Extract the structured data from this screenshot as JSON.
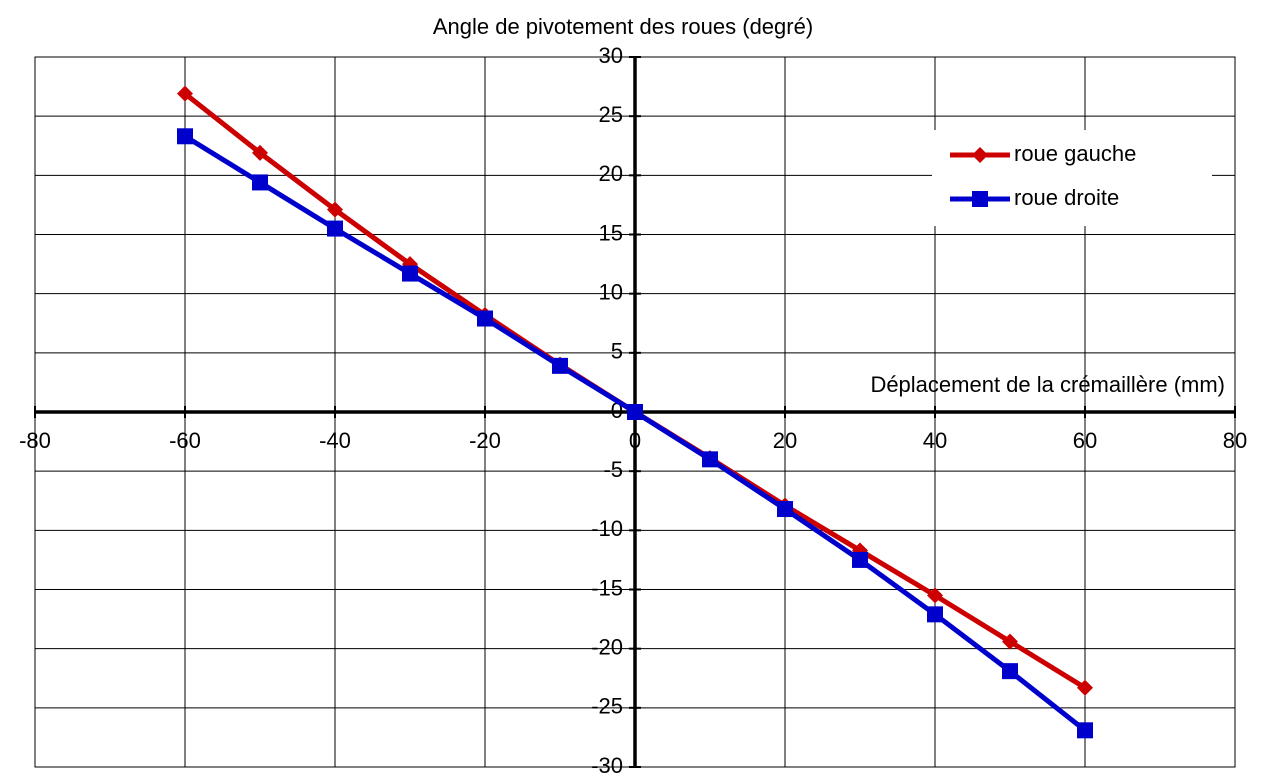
{
  "chart_data": {
    "type": "line",
    "title": "Angle de pivotement des roues (degré)",
    "x_label": "Déplacement de la crémaillère (mm)",
    "x": [
      -60,
      -50,
      -40,
      -30,
      -20,
      -10,
      0,
      10,
      20,
      30,
      40,
      50,
      60
    ],
    "series": [
      {
        "name": "roue gauche",
        "color": "#cc0000",
        "marker": "diamond",
        "values": [
          26.9,
          21.9,
          17.1,
          12.5,
          8.2,
          4.0,
          0,
          -3.9,
          -7.9,
          -11.7,
          -15.5,
          -19.4,
          -23.3
        ]
      },
      {
        "name": "roue droite",
        "color": "#0000cc",
        "marker": "square",
        "values": [
          23.3,
          19.4,
          15.5,
          11.7,
          7.9,
          3.9,
          0,
          -4.0,
          -8.2,
          -12.5,
          -17.1,
          -21.9,
          -26.9
        ]
      }
    ],
    "xlim": [
      -80,
      80
    ],
    "ylim": [
      -30,
      30
    ],
    "xticks": [
      -80,
      -60,
      -40,
      -20,
      0,
      20,
      40,
      60,
      80
    ],
    "yticks": [
      -30,
      -25,
      -20,
      -15,
      -10,
      -5,
      0,
      5,
      10,
      15,
      20,
      25,
      30
    ],
    "grid": true,
    "legend": "upper right"
  }
}
